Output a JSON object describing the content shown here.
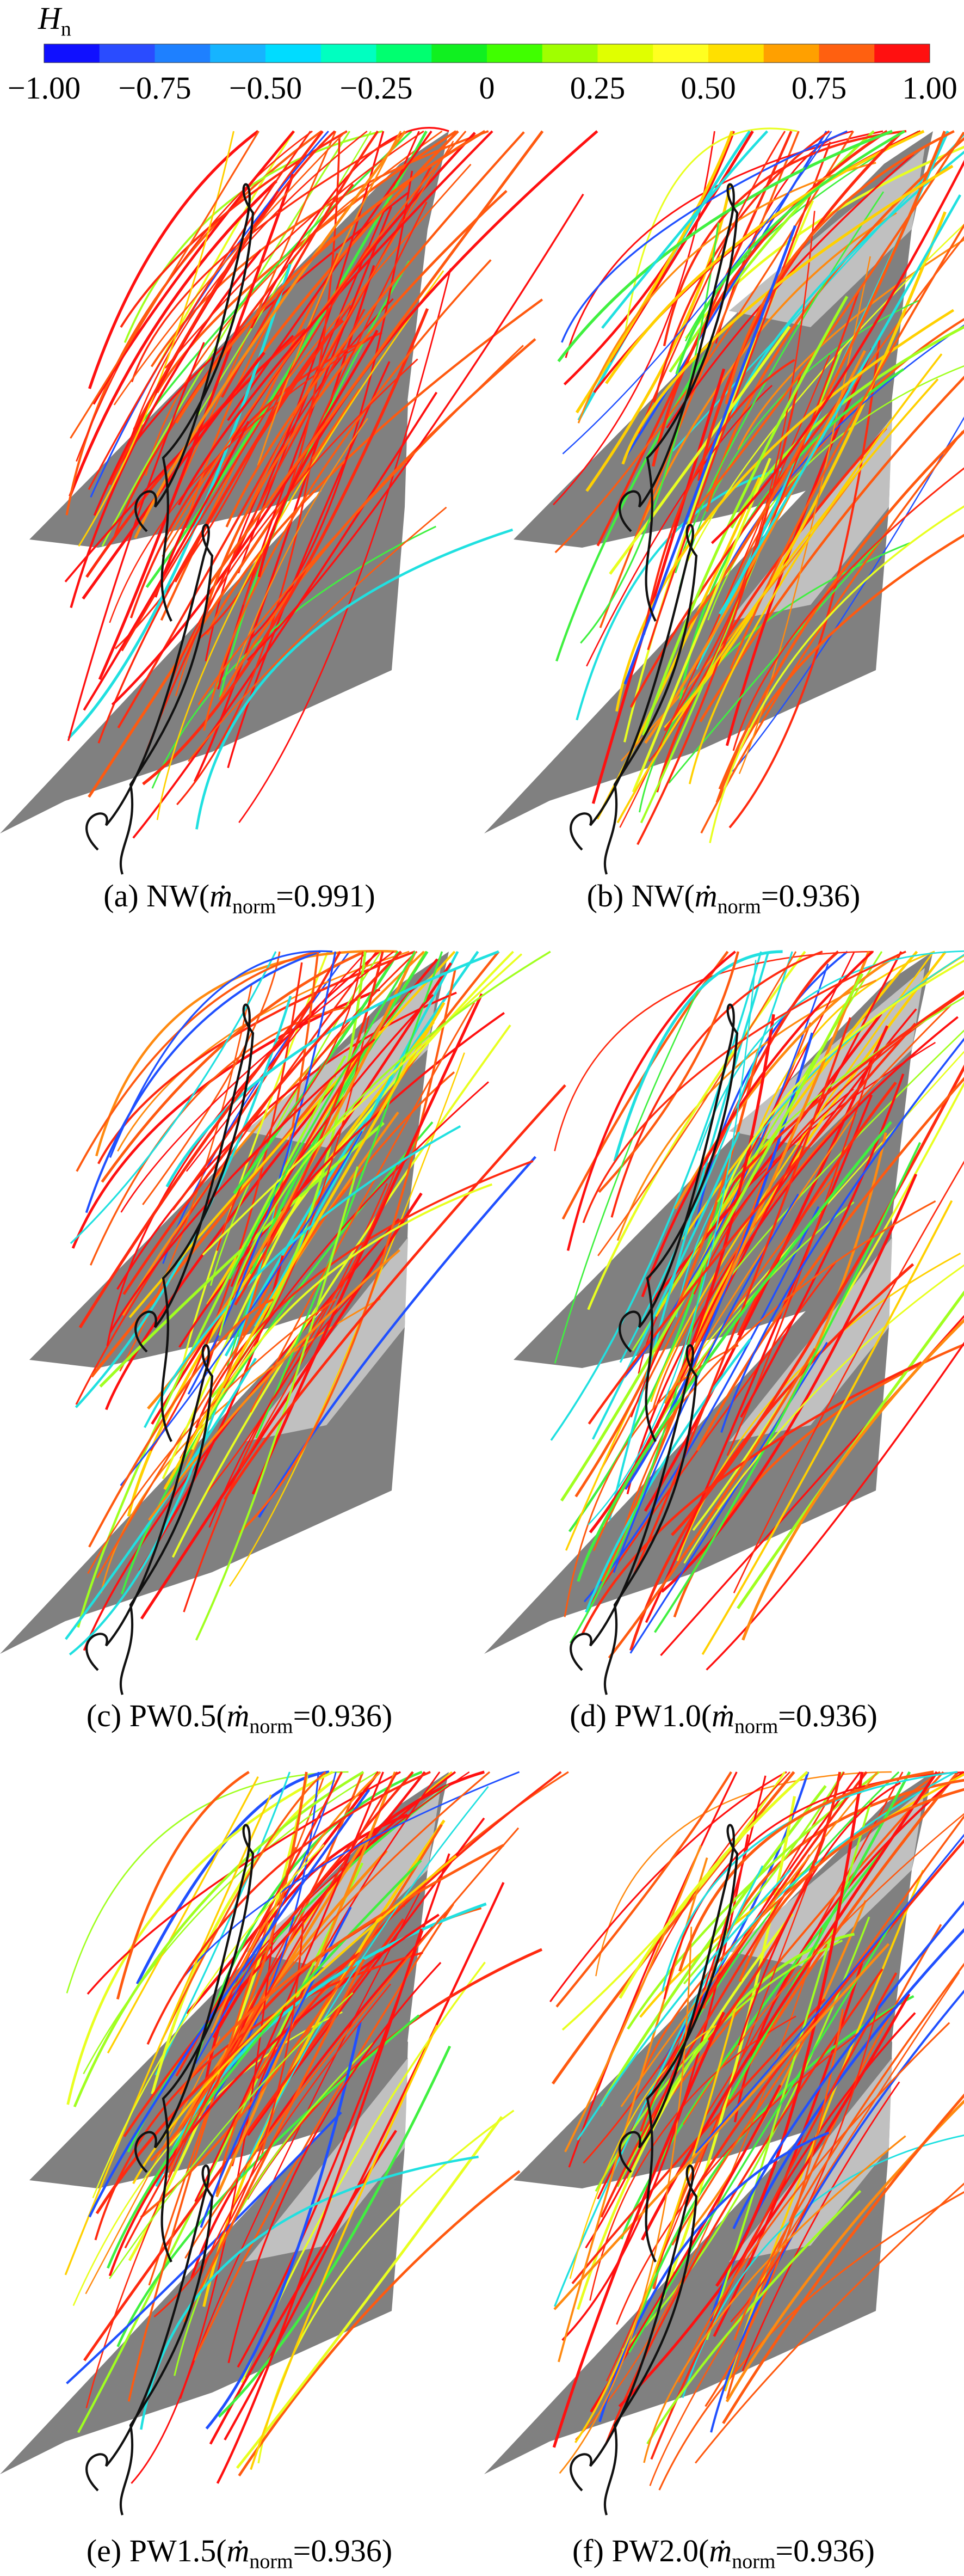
{
  "colorbar": {
    "title": "H",
    "title_subscript": "n",
    "ticks": [
      "−1.00",
      "−0.75",
      "−0.50",
      "−0.25",
      "0",
      "0.25",
      "0.50",
      "0.75",
      "1.00"
    ],
    "colors": [
      "#1010ff",
      "#2a4cff",
      "#1e80ff",
      "#16b4ff",
      "#00dcff",
      "#00ffc0",
      "#00ff70",
      "#10f020",
      "#40ff00",
      "#a0ff00",
      "#e0ff00",
      "#ffff20",
      "#ffe000",
      "#ffa000",
      "#ff6010",
      "#ff1010"
    ]
  },
  "panels": [
    {
      "prefix": "(a) NW(",
      "symbol": "ṁ",
      "subscript": "norm",
      "suffix": "=0.991)"
    },
    {
      "prefix": "(b) NW(",
      "symbol": "ṁ",
      "subscript": "norm",
      "suffix": "=0.936)"
    },
    {
      "prefix": "(c) PW0.5(",
      "symbol": "ṁ",
      "subscript": "norm",
      "suffix": "=0.936)"
    },
    {
      "prefix": "(d) PW1.0(",
      "symbol": "ṁ",
      "subscript": "norm",
      "suffix": "=0.936)"
    },
    {
      "prefix": "(e) PW1.5(",
      "symbol": "ṁ",
      "subscript": "norm",
      "suffix": "=0.936)"
    },
    {
      "prefix": "(f) PW2.0(",
      "symbol": "ṁ",
      "subscript": "norm",
      "suffix": "=0.936)"
    }
  ]
}
